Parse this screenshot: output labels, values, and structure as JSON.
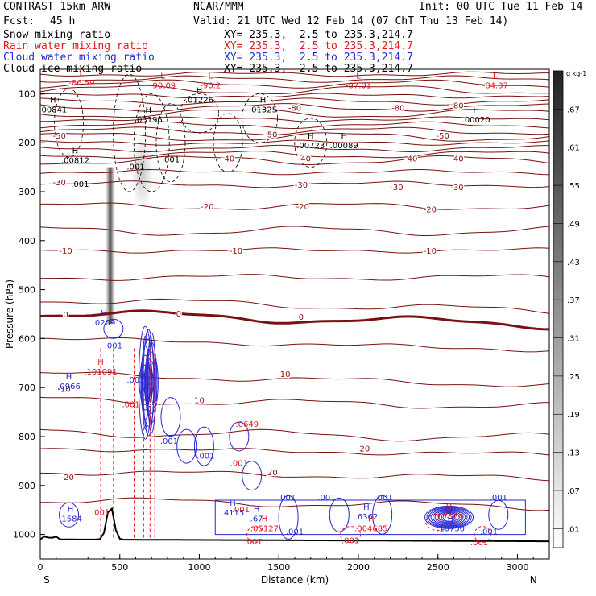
{
  "header": {
    "model": "CONTRAST 15km ARW",
    "org": "NCAR/MMM",
    "init": "Init: 00 UTC Tue 11 Feb 14",
    "fcst_label": "Fcst:",
    "fcst_value": "45 h",
    "valid": "Valid: 21 UTC Wed 12 Feb 14 (07 ChT Thu 13 Feb 14)"
  },
  "fields": [
    {
      "name": "Snow mixing ratio",
      "xy": "XY= 235.3,  2.5 to 235.3,214.7",
      "color": "#000000"
    },
    {
      "name": "Rain water mixing ratio",
      "xy": "XY= 235.3,  2.5 to 235.3,214.7",
      "color": "#e8141e"
    },
    {
      "name": "Cloud water mixing ratio",
      "xy": "XY= 235.3,  2.5 to 235.3,214.7",
      "color": "#2828d2"
    },
    {
      "name": "Cloud ice mixing ratio",
      "xy": "XY= 235.3,  2.5 to 235.3,214.7",
      "color": "#000000"
    }
  ],
  "chart_data": {
    "type": "heatmap",
    "title": "Vertical cross-section: mixing ratios and temperature",
    "xlabel": "Distance (km)",
    "ylabel": "Pressure (hPa)",
    "x_ticks": [
      0,
      500,
      1000,
      1500,
      2000,
      2500,
      3000
    ],
    "xlim": [
      0,
      3200
    ],
    "y_ticks": [
      100,
      200,
      300,
      400,
      500,
      600,
      700,
      800,
      900,
      1000
    ],
    "ylim": [
      1050,
      50
    ],
    "end_labels": {
      "left": "S",
      "right": "N"
    },
    "colorbar": {
      "unit": "g kg-1",
      "labels": [
        ".67",
        ".61",
        ".55",
        ".49",
        ".43",
        ".37",
        ".31",
        ".25",
        ".19",
        ".13",
        ".07",
        ".01"
      ],
      "color_dark": "#222222",
      "color_light": "#ffffff"
    },
    "temperature_contours": [
      {
        "label": "-80",
        "x": 1600,
        "p": 128
      },
      {
        "label": "-80",
        "x": 2250,
        "p": 128
      },
      {
        "label": "-80",
        "x": 2620,
        "p": 123
      },
      {
        "label": "-50",
        "x": 120,
        "p": 185
      },
      {
        "label": "-50",
        "x": 1450,
        "p": 182
      },
      {
        "label": "-50",
        "x": 2530,
        "p": 185
      },
      {
        "label": "-40",
        "x": 1180,
        "p": 232
      },
      {
        "label": "-40",
        "x": 1660,
        "p": 232
      },
      {
        "label": "-40",
        "x": 2330,
        "p": 232
      },
      {
        "label": "-40",
        "x": 2620,
        "p": 232
      },
      {
        "label": "-30",
        "x": 120,
        "p": 280
      },
      {
        "label": "-30",
        "x": 1640,
        "p": 285
      },
      {
        "label": "-30",
        "x": 2240,
        "p": 290
      },
      {
        "label": "-30",
        "x": 2620,
        "p": 290
      },
      {
        "label": "-20",
        "x": 1050,
        "p": 330
      },
      {
        "label": "-20",
        "x": 1650,
        "p": 330
      },
      {
        "label": "-20",
        "x": 2450,
        "p": 335
      },
      {
        "label": "-10",
        "x": 160,
        "p": 420
      },
      {
        "label": "-10",
        "x": 1230,
        "p": 420
      },
      {
        "label": "-10",
        "x": 2450,
        "p": 420
      },
      {
        "label": "0",
        "x": 160,
        "p": 550
      },
      {
        "label": "0",
        "x": 870,
        "p": 548
      },
      {
        "label": "0",
        "x": 1640,
        "p": 555
      },
      {
        "label": "10",
        "x": 1540,
        "p": 672
      },
      {
        "label": "-10",
        "x": 150,
        "p": 702
      },
      {
        "label": "10",
        "x": 1000,
        "p": 725
      },
      {
        "label": "20",
        "x": 2040,
        "p": 824
      },
      {
        "label": "20",
        "x": 1460,
        "p": 872
      },
      {
        "label": "20",
        "x": 180,
        "p": 882
      }
    ],
    "extrema_labels": [
      {
        "kind": "L",
        "value": "-86.59",
        "x": 260,
        "p": 80,
        "color": "#e8141e"
      },
      {
        "kind": "L",
        "value": "-90.09",
        "x": 770,
        "p": 85,
        "color": "#e8141e"
      },
      {
        "kind": "L",
        "value": "-90.2",
        "x": 1070,
        "p": 85,
        "color": "#e8141e"
      },
      {
        "kind": "L",
        "value": "-87.01",
        "x": 2000,
        "p": 85,
        "color": "#e8141e"
      },
      {
        "kind": "L",
        "value": "-84.37",
        "x": 2860,
        "p": 85,
        "color": "#e8141e"
      },
      {
        "kind": "H",
        "value": ".00841",
        "x": 80,
        "p": 135,
        "color": "#000000"
      },
      {
        "kind": "H",
        "value": ".03196",
        "x": 680,
        "p": 155,
        "color": "#000000"
      },
      {
        "kind": "H",
        "value": ".01226",
        "x": 1000,
        "p": 115,
        "color": "#000000"
      },
      {
        "kind": "H",
        "value": ".01325",
        "x": 1400,
        "p": 135,
        "color": "#000000"
      },
      {
        "kind": "H",
        "value": ".00020",
        "x": 2740,
        "p": 155,
        "color": "#000000"
      },
      {
        "kind": "H",
        "value": ".00723",
        "x": 1700,
        "p": 208,
        "color": "#000000"
      },
      {
        "kind": "H",
        "value": ".00089",
        "x": 1910,
        "p": 208,
        "color": "#000000"
      },
      {
        "kind": "H",
        "value": ".00812",
        "x": 220,
        "p": 238,
        "color": "#000000"
      },
      {
        "kind": "H",
        "value": ".0209",
        "x": 400,
        "p": 570,
        "color": "#2828d2"
      },
      {
        "kind": "H",
        "value": ".101091",
        "x": 380,
        "p": 670,
        "color": "#e8141e"
      },
      {
        "kind": "H",
        "value": ".0966",
        "x": 180,
        "p": 700,
        "color": "#2828d2"
      },
      {
        "kind": "H",
        "value": ".1584",
        "x": 190,
        "p": 970,
        "color": "#2828d2"
      },
      {
        "kind": "H",
        "value": ".4115",
        "x": 1210,
        "p": 958,
        "color": "#2828d2"
      },
      {
        "kind": "H",
        "value": ".67",
        "x": 1360,
        "p": 970,
        "color": "#2828d2"
      },
      {
        "kind": "H",
        "value": ".05127",
        "x": 1410,
        "p": 990,
        "color": "#e8141e"
      },
      {
        "kind": "H",
        "value": ".6362",
        "x": 2050,
        "p": 966,
        "color": "#2828d2"
      },
      {
        "kind": "H",
        "value": ".004685",
        "x": 2080,
        "p": 990,
        "color": "#e8141e"
      },
      {
        "kind": "H",
        "value": ".07569",
        "x": 2570,
        "p": 966,
        "color": "#e8141e"
      },
      {
        "kind": "H",
        "value": ".10750",
        "x": 2580,
        "p": 990,
        "color": "#2828d2"
      }
    ],
    "value_labels": [
      {
        "value": ".001",
        "x": 250,
        "p": 290,
        "color": "#000000"
      },
      {
        "value": ".001",
        "x": 600,
        "p": 255,
        "color": "#000000"
      },
      {
        "value": ".001",
        "x": 820,
        "p": 240,
        "color": "#000000"
      },
      {
        "value": ".001",
        "x": 460,
        "p": 620,
        "color": "#2828d2"
      },
      {
        "value": ".001",
        "x": 600,
        "p": 690,
        "color": "#2828d2"
      },
      {
        "value": ".001",
        "x": 570,
        "p": 740,
        "color": "#e8141e"
      },
      {
        "value": ".401",
        "x": 720,
        "p": 740,
        "color": "#ffffff"
      },
      {
        "value": ".001",
        "x": 810,
        "p": 815,
        "color": "#2828d2"
      },
      {
        "value": ".001",
        "x": 1040,
        "p": 845,
        "color": "#2828d2"
      },
      {
        "value": ".001",
        "x": 1250,
        "p": 860,
        "color": "#e8141e"
      },
      {
        "value": ".001",
        "x": 1550,
        "p": 930,
        "color": "#2828d2"
      },
      {
        "value": ".001",
        "x": 1800,
        "p": 930,
        "color": "#2828d2"
      },
      {
        "value": ".001",
        "x": 2160,
        "p": 930,
        "color": "#2828d2"
      },
      {
        "value": ".001",
        "x": 2880,
        "p": 930,
        "color": "#2828d2"
      },
      {
        "value": ".001",
        "x": 1600,
        "p": 1000,
        "color": "#2828d2"
      },
      {
        "value": ".001",
        "x": 2820,
        "p": 1000,
        "color": "#2828d2"
      },
      {
        "value": ".001",
        "x": 1340,
        "p": 1020,
        "color": "#e8141e"
      },
      {
        "value": ".001",
        "x": 1950,
        "p": 1018,
        "color": "#e8141e"
      },
      {
        "value": ".001",
        "x": 2760,
        "p": 1022,
        "color": "#e8141e"
      },
      {
        "value": ".001",
        "x": 380,
        "p": 960,
        "color": "#e8141e"
      },
      {
        "value": ".001",
        "x": 1260,
        "p": 955,
        "color": "#e8141e"
      },
      {
        "value": ".0649",
        "x": 1300,
        "p": 780,
        "color": "#e8141e"
      }
    ],
    "terrain_peak": {
      "x": 440,
      "p": 940
    },
    "surface_pressure": 1010
  }
}
